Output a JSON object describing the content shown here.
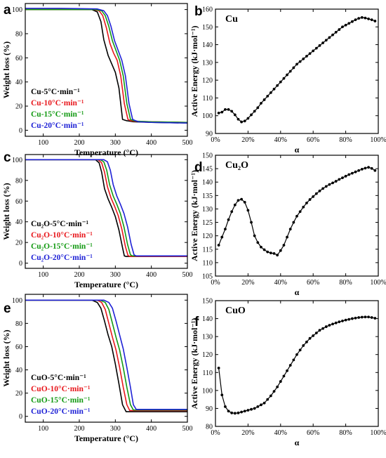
{
  "chart_data": [
    {
      "id": "a",
      "panel_letter": "a",
      "type": "line",
      "xlabel": "Temperature (°C)",
      "ylabel": "Weight loss (%)",
      "xlim": [
        50,
        500
      ],
      "ylim": [
        -5,
        105
      ],
      "xticks": [
        100,
        200,
        300,
        400,
        500
      ],
      "yticks": [
        0,
        20,
        40,
        60,
        80,
        100
      ],
      "legend_position": "bottom-left",
      "series": [
        {
          "name": "Cu-5°C·min⁻¹",
          "color": "#000000",
          "x": [
            50,
            150,
            235,
            250,
            260,
            268,
            280,
            290,
            300,
            310,
            320,
            330,
            340,
            350,
            400,
            500
          ],
          "y": [
            100,
            100,
            100,
            98,
            90,
            75,
            62,
            55,
            48,
            35,
            9,
            8,
            7.5,
            7,
            6.5,
            6
          ]
        },
        {
          "name": "Cu-10°C·min⁻¹",
          "color": "#e8161b",
          "x": [
            50,
            150,
            240,
            255,
            265,
            275,
            285,
            295,
            305,
            315,
            325,
            335,
            342,
            350,
            400,
            500
          ],
          "y": [
            100,
            100,
            100,
            99,
            95,
            85,
            72,
            64,
            58,
            45,
            22,
            9,
            8,
            7.5,
            7,
            6.5
          ]
        },
        {
          "name": "Cu-15°C·min⁻¹",
          "color": "#139a13",
          "x": [
            50,
            150,
            245,
            262,
            272,
            282,
            292,
            302,
            312,
            322,
            332,
            342,
            350,
            360,
            400,
            500
          ],
          "y": [
            100,
            100,
            100,
            99,
            95,
            86,
            74,
            66,
            58,
            45,
            22,
            9,
            8,
            7.5,
            7,
            6.5
          ]
        },
        {
          "name": "Cu-20°C·min⁻¹",
          "color": "#1f22d6",
          "x": [
            50,
            150,
            250,
            268,
            278,
            288,
            298,
            308,
            318,
            328,
            338,
            348,
            355,
            365,
            400,
            500
          ],
          "y": [
            101,
            101,
            100.5,
            99,
            95,
            86,
            74,
            66,
            58,
            45,
            22,
            9,
            8,
            7,
            6.5,
            6
          ]
        }
      ]
    },
    {
      "id": "b",
      "panel_letter": "b",
      "panel_title": "Cu",
      "type": "line",
      "markers": true,
      "xlabel": "α",
      "ylabel": "Active Energy (kJ·mol⁻¹)",
      "xlim": [
        0,
        100
      ],
      "ylim": [
        90,
        160
      ],
      "xticks": [
        0,
        20,
        40,
        60,
        80,
        100
      ],
      "xticklabels": [
        "0%",
        "20%",
        "40%",
        "60%",
        "80%",
        "100%"
      ],
      "yticks": [
        90,
        100,
        110,
        120,
        130,
        140,
        150,
        160
      ],
      "series": [
        {
          "color": "#000000",
          "x": [
            2,
            4,
            6,
            8,
            10,
            12,
            14,
            16,
            18,
            20,
            22,
            24,
            26,
            28,
            30,
            32,
            34,
            36,
            38,
            40,
            42,
            44,
            46,
            48,
            50,
            52,
            54,
            56,
            58,
            60,
            62,
            64,
            66,
            68,
            70,
            72,
            74,
            76,
            78,
            80,
            82,
            84,
            86,
            88,
            90,
            92,
            94,
            96,
            98
          ],
          "y": [
            101.5,
            102,
            103.5,
            103.5,
            102.5,
            100.5,
            98,
            96.5,
            97,
            98.5,
            100.5,
            102.5,
            104.5,
            107,
            109,
            111,
            113,
            115,
            117,
            119,
            121,
            123,
            125,
            127,
            129,
            130.5,
            132,
            133.5,
            135,
            136.5,
            138,
            139.5,
            141,
            142.5,
            144,
            145.5,
            147,
            148.5,
            150,
            151,
            152,
            153,
            154,
            154.8,
            155.3,
            155,
            154.5,
            154,
            153.3
          ]
        }
      ]
    },
    {
      "id": "c",
      "panel_letter": "c",
      "type": "line",
      "xlabel": "Temperature (°C)",
      "ylabel": "Weight loss (%)",
      "xlim": [
        50,
        500
      ],
      "ylim": [
        -5,
        105
      ],
      "xticks": [
        100,
        200,
        300,
        400,
        500
      ],
      "yticks": [
        0,
        20,
        40,
        60,
        80,
        100
      ],
      "legend_position": "bottom-left",
      "series": [
        {
          "name": "Cu₂O-5°C·min⁻¹",
          "color": "#000000",
          "x": [
            50,
            150,
            245,
            255,
            262,
            270,
            280,
            290,
            300,
            310,
            320,
            325,
            330,
            400,
            500
          ],
          "y": [
            100,
            100,
            100,
            97,
            88,
            72,
            62,
            54,
            45,
            32,
            15,
            7,
            6.5,
            6.5,
            6.5
          ]
        },
        {
          "name": "Cu₂O-10°C·min⁻¹",
          "color": "#e8161b",
          "x": [
            50,
            150,
            252,
            262,
            270,
            278,
            288,
            298,
            308,
            318,
            328,
            335,
            340,
            400,
            500
          ],
          "y": [
            100,
            100,
            100,
            97,
            88,
            74,
            63,
            55,
            46,
            33,
            16,
            7.5,
            6.5,
            6.5,
            6.5
          ]
        },
        {
          "name": "Cu₂O-15°C·min⁻¹",
          "color": "#139a13",
          "x": [
            50,
            150,
            258,
            268,
            276,
            284,
            294,
            304,
            314,
            324,
            334,
            342,
            348,
            400,
            500
          ],
          "y": [
            100,
            100,
            100,
            98,
            90,
            76,
            65,
            57,
            48,
            35,
            18,
            8,
            7,
            7,
            7
          ]
        },
        {
          "name": "Cu₂O-20°C·min⁻¹",
          "color": "#1f22d6",
          "x": [
            50,
            150,
            268,
            278,
            286,
            294,
            304,
            314,
            324,
            334,
            344,
            352,
            358,
            400,
            500
          ],
          "y": [
            100,
            100,
            100,
            98,
            90,
            76,
            65,
            57,
            48,
            35,
            18,
            8,
            7,
            7,
            7
          ]
        }
      ]
    },
    {
      "id": "d",
      "panel_letter": "d",
      "panel_title": "Cu₂O",
      "type": "line",
      "markers": true,
      "xlabel": "α",
      "ylabel": "Active Energy (kJ·mol⁻¹)",
      "xlim": [
        0,
        100
      ],
      "ylim": [
        105,
        150
      ],
      "xticks": [
        0,
        20,
        40,
        60,
        80,
        100
      ],
      "xticklabels": [
        "0%",
        "20%",
        "40%",
        "60%",
        "80%",
        "100%"
      ],
      "yticks": [
        105,
        110,
        115,
        120,
        125,
        130,
        135,
        140,
        145,
        150
      ],
      "series": [
        {
          "color": "#000000",
          "x": [
            2,
            4,
            6,
            8,
            10,
            12,
            14,
            16,
            18,
            20,
            22,
            24,
            26,
            28,
            30,
            32,
            34,
            36,
            38,
            40,
            42,
            44,
            46,
            48,
            50,
            52,
            54,
            56,
            58,
            60,
            62,
            64,
            66,
            68,
            70,
            72,
            74,
            76,
            78,
            80,
            82,
            84,
            86,
            88,
            90,
            92,
            94,
            96,
            98
          ],
          "y": [
            116.5,
            119.5,
            122.5,
            126,
            129,
            131.5,
            133.2,
            133.6,
            132.5,
            129.5,
            125,
            120,
            117.5,
            115.8,
            114.8,
            114,
            113.6,
            113.4,
            112.8,
            114.5,
            116.5,
            119.5,
            122.5,
            125,
            127.3,
            129,
            130.7,
            132.2,
            133.5,
            134.6,
            135.7,
            136.7,
            137.6,
            138.4,
            139.1,
            139.7,
            140.3,
            141,
            141.6,
            142.2,
            142.8,
            143.3,
            143.8,
            144.3,
            144.8,
            145.2,
            145.5,
            145.1,
            144.3
          ]
        }
      ]
    },
    {
      "id": "e",
      "panel_letter": "e",
      "type": "line",
      "xlabel": "Temperature (°C)",
      "ylabel": "Weight loss (%)",
      "xlim": [
        50,
        500
      ],
      "ylim": [
        -5,
        105
      ],
      "xticks": [
        100,
        200,
        300,
        400,
        500
      ],
      "yticks": [
        0,
        20,
        40,
        60,
        80,
        100
      ],
      "legend_position": "bottom-left",
      "series": [
        {
          "name": "CuO-5°C·min⁻¹",
          "color": "#000000",
          "x": [
            50,
            150,
            235,
            250,
            260,
            270,
            280,
            290,
            300,
            310,
            320,
            330,
            400,
            500
          ],
          "y": [
            100,
            100,
            100,
            98,
            93,
            82,
            70,
            60,
            45,
            28,
            10,
            4,
            4,
            4
          ]
        },
        {
          "name": "CuO-10°C·min⁻¹",
          "color": "#e8161b",
          "x": [
            50,
            150,
            250,
            262,
            272,
            282,
            292,
            302,
            312,
            322,
            332,
            340,
            400,
            500
          ],
          "y": [
            100,
            100,
            100,
            98,
            92,
            80,
            68,
            57,
            42,
            25,
            10,
            5,
            5,
            5
          ]
        },
        {
          "name": "CuO-15°C·min⁻¹",
          "color": "#139a13",
          "x": [
            50,
            150,
            258,
            272,
            282,
            292,
            302,
            312,
            322,
            332,
            342,
            350,
            400,
            500
          ],
          "y": [
            100,
            100,
            100,
            98,
            92,
            80,
            68,
            57,
            42,
            25,
            10,
            5.5,
            5.5,
            5.5
          ]
        },
        {
          "name": "CuO-20°C·min⁻¹",
          "color": "#1f22d6",
          "x": [
            50,
            150,
            268,
            282,
            292,
            302,
            312,
            322,
            332,
            342,
            350,
            358,
            400,
            500
          ],
          "y": [
            100,
            100,
            100,
            98,
            93,
            82,
            70,
            58,
            42,
            25,
            10,
            6,
            6,
            6
          ]
        }
      ]
    },
    {
      "id": "f",
      "panel_letter": "f",
      "panel_title": "CuO",
      "type": "line",
      "markers": true,
      "xlabel": "α",
      "ylabel": "Active Energy (kJ·mol⁻¹)",
      "xlim": [
        0,
        100
      ],
      "ylim": [
        80,
        150
      ],
      "xticks": [
        0,
        20,
        40,
        60,
        80,
        100
      ],
      "xticklabels": [
        "0%",
        "20%",
        "40%",
        "60%",
        "80%",
        "100%"
      ],
      "yticks": [
        80,
        90,
        100,
        110,
        120,
        130,
        140,
        150
      ],
      "series": [
        {
          "color": "#000000",
          "x": [
            2,
            4,
            6,
            8,
            10,
            12,
            14,
            16,
            18,
            20,
            22,
            24,
            26,
            28,
            30,
            32,
            34,
            36,
            38,
            40,
            42,
            44,
            46,
            48,
            50,
            52,
            54,
            56,
            58,
            60,
            62,
            64,
            66,
            68,
            70,
            72,
            74,
            76,
            78,
            80,
            82,
            84,
            86,
            88,
            90,
            92,
            94,
            96,
            98
          ],
          "y": [
            112.5,
            97.5,
            91,
            88.5,
            87.5,
            87.3,
            87.5,
            88,
            88.5,
            89,
            89.5,
            90,
            91,
            92,
            93,
            95,
            97,
            99.5,
            102,
            105,
            108,
            111,
            114,
            117,
            120,
            122.5,
            125,
            127,
            129,
            130.5,
            132,
            133.5,
            134.5,
            135.5,
            136.3,
            137,
            137.6,
            138.2,
            138.7,
            139.2,
            139.6,
            140,
            140.3,
            140.6,
            140.8,
            140.9,
            140.9,
            140.6,
            140.2
          ]
        }
      ]
    }
  ]
}
